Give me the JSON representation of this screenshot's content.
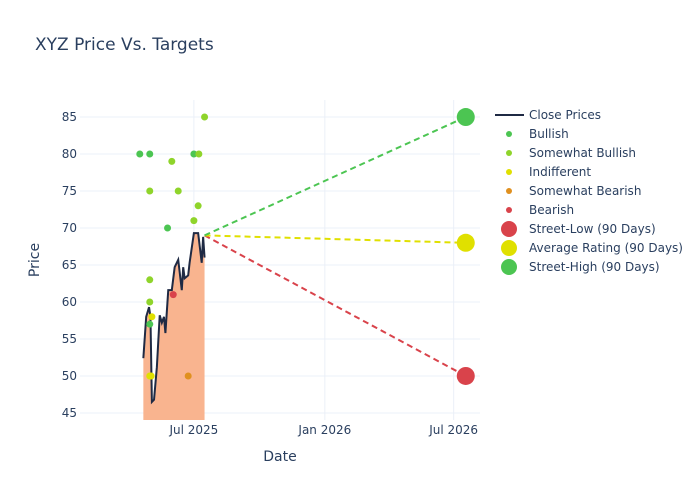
{
  "chart_data": {
    "type": "line",
    "title": "XYZ Price Vs. Targets",
    "xlabel": "Date",
    "ylabel": "Price",
    "xlim": [
      "2025-01-22",
      "2026-08-07"
    ],
    "ylim": [
      44.05,
      87.3
    ],
    "x_ticks": [
      {
        "date": "2025-07-01",
        "label": "Jul 2025"
      },
      {
        "date": "2026-01-01",
        "label": "Jan 2026"
      },
      {
        "date": "2026-07-01",
        "label": "Jul 2026"
      }
    ],
    "y_ticks": [
      45,
      50,
      55,
      60,
      65,
      70,
      75,
      80,
      85
    ],
    "grid": true,
    "legend_position": "right",
    "colors": {
      "line": "#1f2a44",
      "fill": "#f9b48f",
      "bullish": "#4cc552",
      "somewhat_bullish": "#8fd42b",
      "indifferent": "#e0e000",
      "somewhat_bearish": "#e0901f",
      "bearish": "#d9434b"
    },
    "close_prices": {
      "name": "Close Prices",
      "x": [
        "2025-04-21",
        "2025-04-25",
        "2025-04-29",
        "2025-05-01",
        "2025-05-03",
        "2025-05-06",
        "2025-05-10",
        "2025-05-14",
        "2025-05-17",
        "2025-05-20",
        "2025-05-22",
        "2025-05-26",
        "2025-05-31",
        "2025-06-04",
        "2025-06-09",
        "2025-06-14",
        "2025-06-16",
        "2025-06-18",
        "2025-06-23",
        "2025-06-25",
        "2025-07-01",
        "2025-07-07",
        "2025-07-12",
        "2025-07-14",
        "2025-07-16"
      ],
      "y": [
        52.4,
        58,
        59.3,
        58,
        46.5,
        46.8,
        51.2,
        58.2,
        57.2,
        58,
        55.8,
        61.6,
        61.6,
        64.7,
        65.7,
        61.6,
        64.7,
        63.2,
        63.6,
        65.3,
        69.3,
        69.3,
        65.3,
        68.8,
        66
      ]
    },
    "ratings": [
      {
        "name": "Bullish",
        "key": "bullish",
        "points": [
          [
            "2025-04-16",
            80
          ],
          [
            "2025-04-30",
            80
          ],
          [
            "2025-07-01",
            80
          ],
          [
            "2025-05-25",
            70
          ],
          [
            "2025-04-30",
            57
          ]
        ]
      },
      {
        "name": "Somewhat Bullish",
        "key": "somewhat_bullish",
        "points": [
          [
            "2025-07-16",
            85
          ],
          [
            "2025-07-08",
            80
          ],
          [
            "2025-05-31",
            79
          ],
          [
            "2025-04-30",
            75
          ],
          [
            "2025-06-09",
            75
          ],
          [
            "2025-07-07",
            73
          ],
          [
            "2025-07-01",
            71
          ],
          [
            "2025-04-30",
            63
          ],
          [
            "2025-04-30",
            60
          ]
        ]
      },
      {
        "name": "Indifferent",
        "key": "indifferent",
        "points": [
          [
            "2025-05-03",
            58
          ],
          [
            "2025-04-30",
            50
          ],
          [
            "2025-05-02",
            50
          ]
        ]
      },
      {
        "name": "Somewhat Bearish",
        "key": "somewhat_bearish",
        "points": [
          [
            "2025-06-23",
            50
          ]
        ]
      },
      {
        "name": "Bearish",
        "key": "bearish",
        "points": [
          [
            "2025-06-02",
            61
          ]
        ]
      }
    ],
    "targets": {
      "start": [
        "2025-07-16",
        69
      ],
      "end_date": "2026-07-18",
      "series": [
        {
          "name": "Street-Low (90 Days)",
          "key": "bearish",
          "value": 50
        },
        {
          "name": "Average Rating (90 Days)",
          "key": "indifferent",
          "value": 68
        },
        {
          "name": "Street-High (90 Days)",
          "key": "bullish",
          "value": 85
        }
      ]
    }
  }
}
